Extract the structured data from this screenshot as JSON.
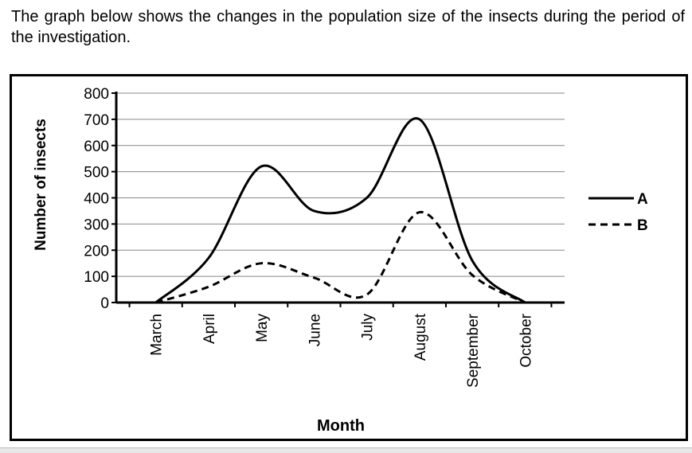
{
  "intro_text": "The graph below shows the changes in the population size of the insects during the period of the investigation.",
  "chart_data": {
    "type": "line",
    "categories": [
      "March",
      "April",
      "May",
      "June",
      "July",
      "August",
      "September",
      "October"
    ],
    "series": [
      {
        "name": "A",
        "style": "solid",
        "values": [
          0,
          170,
          520,
          350,
          400,
          700,
          160,
          0
        ]
      },
      {
        "name": "B",
        "style": "dashed",
        "values": [
          0,
          60,
          150,
          95,
          30,
          345,
          105,
          0
        ]
      }
    ],
    "xlabel": "Month",
    "ylabel": "Number of insects",
    "ylim": [
      0,
      800
    ],
    "yticks": [
      0,
      100,
      200,
      300,
      400,
      500,
      600,
      700,
      800
    ],
    "grid": "horizontal",
    "legend": "right",
    "colors": {
      "lines": "#000000",
      "grid": "#888888"
    }
  }
}
